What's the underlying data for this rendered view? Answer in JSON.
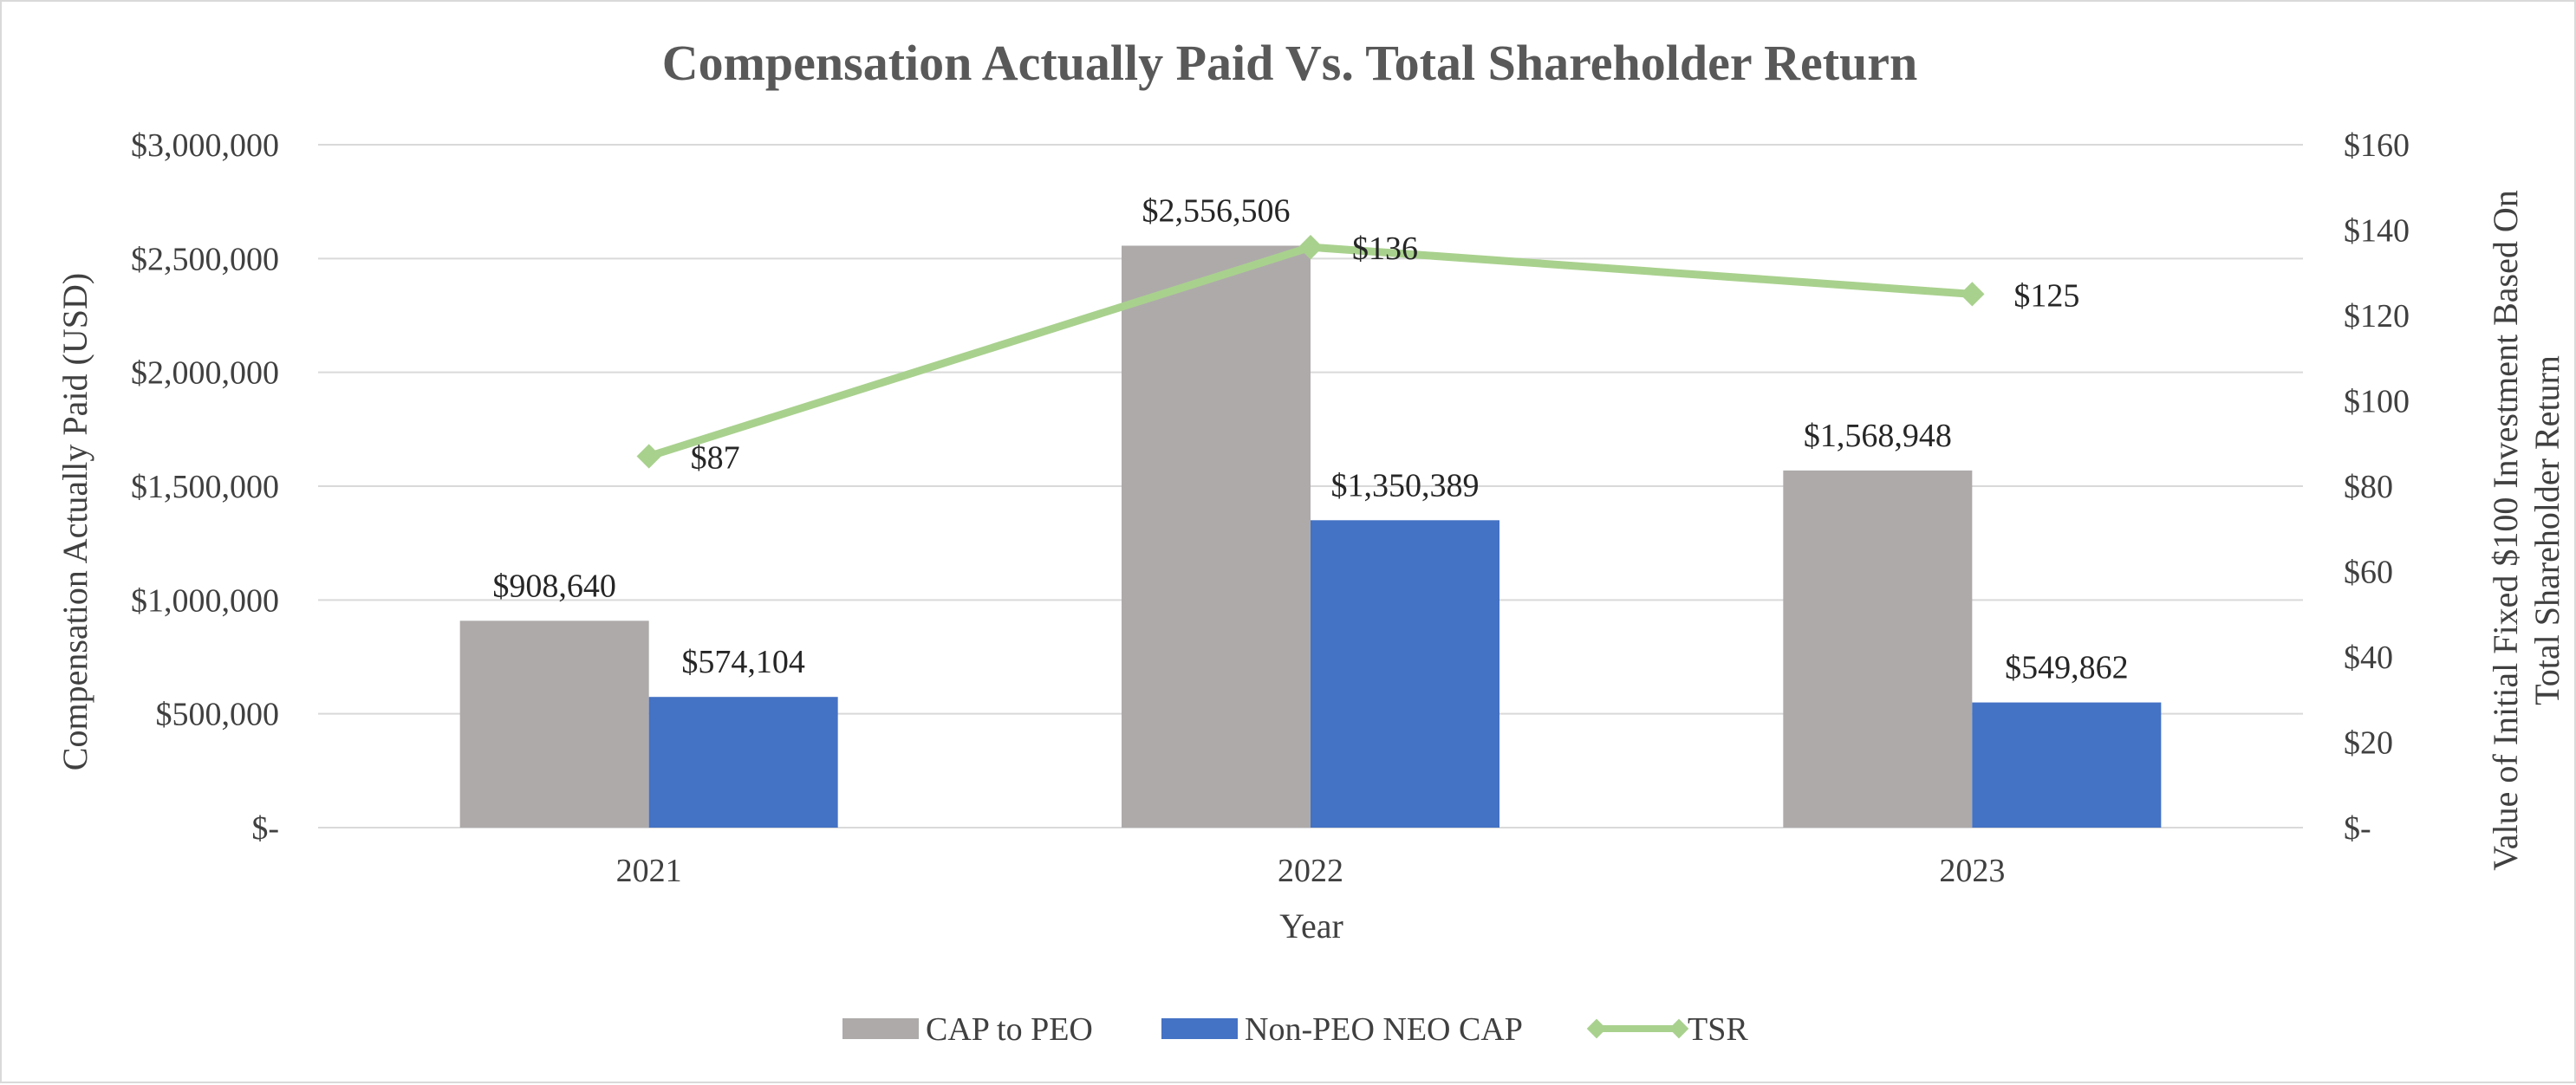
{
  "chart_data": {
    "type": "bar",
    "title": "Compensation Actually Paid Vs. Total Shareholder Return",
    "xlabel": "Year",
    "ylabel": "Compensation Actually Paid (USD)",
    "y2label_lines": [
      "Value of Initial Fixed $100 Investment  Based On",
      "Total Shareholder Return"
    ],
    "categories": [
      "2021",
      "2022",
      "2023"
    ],
    "ylim": [
      0,
      3000000
    ],
    "y2lim": [
      0,
      160
    ],
    "yticks": [
      "$-",
      "$500,000",
      "$1,000,000",
      "$1,500,000",
      "$2,000,000",
      "$2,500,000",
      "$3,000,000"
    ],
    "y2ticks": [
      "$-",
      "$20",
      "$40",
      "$60",
      "$80",
      "$100",
      "$120",
      "$140",
      "$160"
    ],
    "grid": true,
    "legend_position": "bottom",
    "series": [
      {
        "name": "CAP to PEO",
        "type": "bar",
        "axis": "left",
        "color": "#aeaaaa",
        "values": [
          908640,
          2556506,
          1568948
        ],
        "labels": [
          "$908,640",
          "$2,556,506",
          "$1,568,948"
        ]
      },
      {
        "name": "Non-PEO NEO CAP",
        "type": "bar",
        "axis": "left",
        "color": "#4472c4",
        "values": [
          574104,
          1350389,
          549862
        ],
        "labels": [
          "$574,104",
          "$1,350,389",
          "$549,862"
        ]
      },
      {
        "name": "TSR",
        "type": "line",
        "axis": "right",
        "color": "#a9d18e",
        "values": [
          87,
          136,
          125
        ],
        "labels": [
          "$87",
          "$136",
          "$125"
        ]
      }
    ]
  }
}
